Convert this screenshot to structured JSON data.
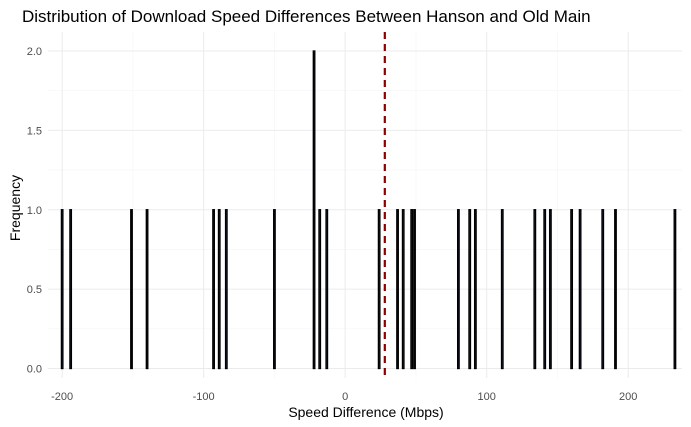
{
  "chart_data": {
    "type": "bar",
    "title": "Distribution of Download Speed Differences Between Hanson and Old Main",
    "xlabel": "Speed Difference (Mbps)",
    "ylabel": "Frequency",
    "xlim": [
      -210,
      238
    ],
    "ylim": [
      -0.06,
      2.12
    ],
    "x_ticks": [
      -200,
      -100,
      0,
      100,
      200
    ],
    "x_tick_labels": [
      "-200",
      "-100",
      "0",
      "100",
      "200"
    ],
    "y_ticks": [
      0.0,
      0.5,
      1.0,
      1.5,
      2.0
    ],
    "y_tick_labels": [
      "0.0",
      "0.5",
      "1.0",
      "1.5",
      "2.0"
    ],
    "bin_width": 1,
    "bars": [
      {
        "x": -200,
        "count": 1
      },
      {
        "x": -194,
        "count": 1
      },
      {
        "x": -151,
        "count": 1
      },
      {
        "x": -140,
        "count": 1
      },
      {
        "x": -93,
        "count": 1
      },
      {
        "x": -89,
        "count": 1
      },
      {
        "x": -84,
        "count": 1
      },
      {
        "x": -50,
        "count": 1
      },
      {
        "x": -22,
        "count": 2
      },
      {
        "x": -18,
        "count": 1
      },
      {
        "x": -13,
        "count": 1
      },
      {
        "x": 24,
        "count": 1
      },
      {
        "x": 37,
        "count": 1
      },
      {
        "x": 41,
        "count": 1
      },
      {
        "x": 47,
        "count": 1
      },
      {
        "x": 49,
        "count": 1
      },
      {
        "x": 80,
        "count": 1
      },
      {
        "x": 88,
        "count": 1
      },
      {
        "x": 92,
        "count": 1
      },
      {
        "x": 111,
        "count": 1
      },
      {
        "x": 134,
        "count": 1
      },
      {
        "x": 141,
        "count": 1
      },
      {
        "x": 145,
        "count": 1
      },
      {
        "x": 160,
        "count": 1
      },
      {
        "x": 166,
        "count": 1
      },
      {
        "x": 182,
        "count": 1
      },
      {
        "x": 191,
        "count": 1
      },
      {
        "x": 233,
        "count": 1
      }
    ],
    "mean_line": {
      "x": 28
    },
    "colors": {
      "bar_fill": "#4f6fb3",
      "bar_outline": "#000000",
      "mean_line": "#8b0000",
      "grid_major": "#ebebeb",
      "grid_minor": "#f5f5f5"
    },
    "grid": true,
    "legend": "none"
  }
}
